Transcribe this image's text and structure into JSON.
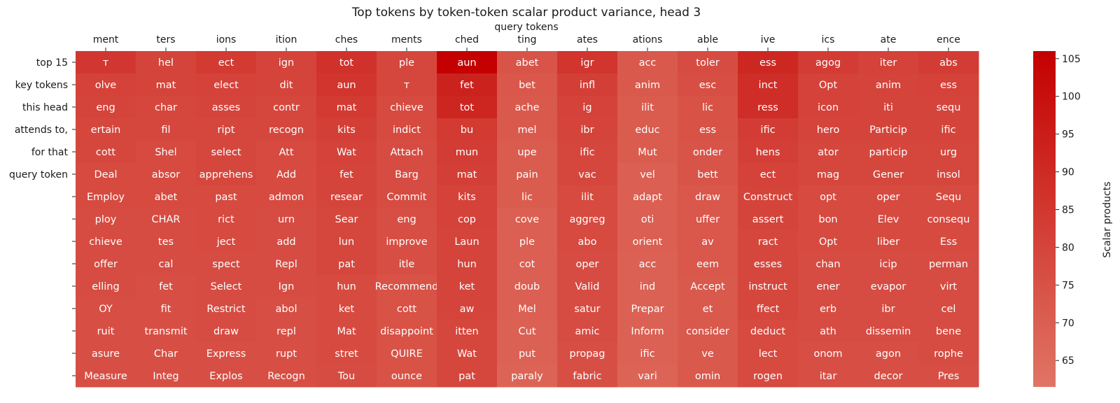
{
  "chart_data": {
    "type": "heatmap",
    "title": "Top tokens by token-token scalar product variance, head 3",
    "xlabel": "query tokens",
    "ylabel": "",
    "x_ticks": [
      "ment",
      "ters",
      "ions",
      "ition",
      "ches",
      "ments",
      "ched",
      "ting",
      "ates",
      "ations",
      "able",
      "ive",
      "ics",
      "ate",
      "ence"
    ],
    "y_ticks": [
      "top 15",
      "key tokens",
      "this head",
      "attends to,",
      "for that",
      "query token",
      "",
      "",
      "",
      "",
      "",
      "",
      "",
      "",
      ""
    ],
    "colorbar": {
      "label": "Scalar products",
      "ticks": [
        65,
        70,
        75,
        80,
        85,
        90,
        95,
        100,
        105
      ],
      "range": [
        61.5,
        106
      ],
      "colors": [
        "#e07565",
        "#c40000"
      ]
    },
    "cells": [
      [
        "ᴛ",
        "hel",
        "ect",
        "ign",
        "tot",
        "ple",
        "aun",
        "abet",
        "igr",
        "acc",
        "toler",
        "ess",
        "agog",
        "iter",
        "abs"
      ],
      [
        "olve",
        "mat",
        "elect",
        "dit",
        "aun",
        "ᴛ",
        "fet",
        "bet",
        "infl",
        "anim",
        "esc",
        "inct",
        "Opt",
        "anim",
        "ess"
      ],
      [
        "eng",
        "char",
        "asses",
        "contr",
        "mat",
        "chieve",
        "tot",
        "ache",
        "ig",
        "ilit",
        "lic",
        "ress",
        "icon",
        "iti",
        "sequ"
      ],
      [
        "ertain",
        "fil",
        "ript",
        "recogn",
        "kits",
        "indict",
        "bu",
        "mel",
        "ibr",
        "educ",
        "ess",
        "ific",
        "hero",
        "Particip",
        "ific"
      ],
      [
        "cott",
        "Shel",
        "select",
        "Att",
        "Wat",
        "Attach",
        "mun",
        "upe",
        "ific",
        "Mut",
        "onder",
        "hens",
        "ator",
        "particip",
        "urg"
      ],
      [
        "Deal",
        "absor",
        "apprehens",
        "Add",
        "fet",
        "Barg",
        "mat",
        "pain",
        "vac",
        "vel",
        "bett",
        "ect",
        "mag",
        "Gener",
        "insol"
      ],
      [
        "Employ",
        "abet",
        "past",
        "admon",
        "resear",
        "Commit",
        "kits",
        "lic",
        "ilit",
        "adapt",
        "draw",
        "Construct",
        "opt",
        "oper",
        "Sequ"
      ],
      [
        "ploy",
        "CHAR",
        "rict",
        "urn",
        "Sear",
        "eng",
        "cop",
        "cove",
        "aggreg",
        "oti",
        "uffer",
        "assert",
        "bon",
        "Elev",
        "consequ"
      ],
      [
        "chieve",
        "tes",
        "ject",
        "add",
        "lun",
        "improve",
        "Laun",
        "ple",
        "abo",
        "orient",
        "av",
        "ract",
        "Opt",
        "liber",
        "Ess"
      ],
      [
        "offer",
        "cal",
        "spect",
        "Repl",
        "pat",
        "itle",
        "hun",
        "cot",
        "oper",
        "acc",
        "eem",
        "esses",
        "chan",
        "icip",
        "perman"
      ],
      [
        "elling",
        "fet",
        "Select",
        "Ign",
        "hun",
        "Recommend",
        "ket",
        "doub",
        "Valid",
        "ind",
        "Accept",
        "instruct",
        "ener",
        "evapor",
        "virt"
      ],
      [
        "OY",
        "fit",
        "Restrict",
        "abol",
        "ket",
        "cott",
        "aw",
        "Mel",
        "satur",
        "Prepar",
        "et",
        "ffect",
        "erb",
        "ibr",
        "cel"
      ],
      [
        "ruit",
        "transmit",
        "draw",
        "repl",
        "Mat",
        "disappoint",
        "itten",
        "Cut",
        "amic",
        "Inform",
        "consider",
        "deduct",
        "ath",
        "dissemin",
        "bene"
      ],
      [
        "asure",
        "Char",
        "Express",
        "rupt",
        "stret",
        "QUIRE",
        "Wat",
        "put",
        "propag",
        "ific",
        "ve",
        "lect",
        "onom",
        "agon",
        "rophe"
      ],
      [
        "Measure",
        "Integ",
        "Explos",
        "Recogn",
        "Tou",
        "ounce",
        "pat",
        "paraly",
        "fabric",
        "vari",
        "omin",
        "rogen",
        "itar",
        "decor",
        "Pres"
      ]
    ],
    "values": [
      [
        85,
        80,
        84,
        80,
        87,
        79,
        106,
        74,
        86,
        72,
        77,
        91,
        83,
        81,
        83
      ],
      [
        81,
        80,
        81,
        80,
        86,
        79,
        93,
        73,
        82,
        72,
        76,
        89,
        81,
        80,
        81
      ],
      [
        80,
        79,
        80,
        79,
        84,
        78,
        92,
        72,
        81,
        71,
        75,
        89,
        81,
        80,
        80
      ],
      [
        79,
        79,
        79,
        79,
        82,
        78,
        84,
        72,
        80,
        71,
        75,
        83,
        80,
        80,
        80
      ],
      [
        79,
        78,
        79,
        78,
        81,
        77,
        83,
        71,
        79,
        71,
        74,
        82,
        79,
        79,
        79
      ],
      [
        78,
        78,
        79,
        78,
        80,
        77,
        82,
        71,
        79,
        70,
        74,
        81,
        79,
        79,
        79
      ],
      [
        78,
        78,
        78,
        78,
        80,
        77,
        81,
        71,
        78,
        70,
        73,
        80,
        78,
        78,
        78
      ],
      [
        77,
        77,
        78,
        77,
        79,
        76,
        81,
        70,
        78,
        70,
        73,
        80,
        78,
        78,
        78
      ],
      [
        77,
        77,
        78,
        77,
        79,
        76,
        80,
        70,
        78,
        70,
        73,
        79,
        78,
        78,
        78
      ],
      [
        77,
        77,
        77,
        77,
        79,
        76,
        80,
        70,
        77,
        69,
        73,
        79,
        77,
        77,
        77
      ],
      [
        77,
        76,
        77,
        77,
        78,
        75,
        80,
        70,
        77,
        69,
        72,
        79,
        77,
        77,
        77
      ],
      [
        76,
        76,
        77,
        76,
        78,
        75,
        80,
        70,
        77,
        69,
        72,
        79,
        77,
        77,
        77
      ],
      [
        76,
        76,
        77,
        76,
        78,
        75,
        79,
        69,
        77,
        69,
        72,
        78,
        77,
        77,
        77
      ],
      [
        76,
        76,
        76,
        76,
        78,
        75,
        79,
        69,
        76,
        69,
        72,
        78,
        76,
        76,
        77
      ],
      [
        76,
        76,
        76,
        76,
        77,
        75,
        79,
        68,
        76,
        68,
        72,
        78,
        76,
        76,
        76
      ]
    ]
  }
}
